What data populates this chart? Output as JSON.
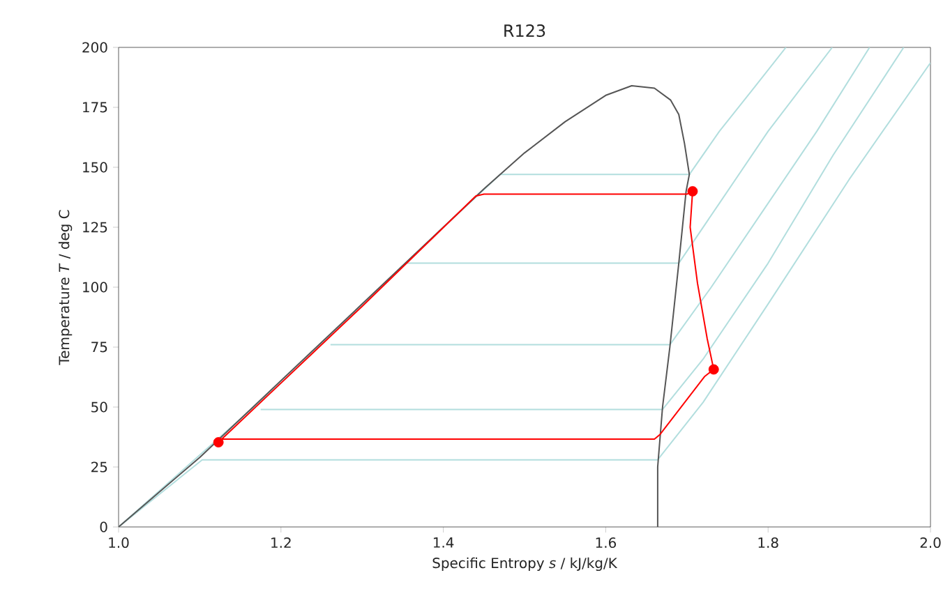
{
  "chart_data": {
    "type": "line",
    "title": "R123",
    "xlabel": "Specific Entropy *s* / kJ/kg/K",
    "ylabel": "Temperature *T* / deg C",
    "xlim": [
      1,
      2
    ],
    "ylim": [
      0,
      200
    ],
    "xticks": [
      {
        "value": 1,
        "label": "1.0"
      },
      1.2,
      1.4,
      1.6,
      1.8,
      {
        "value": 2,
        "label": "2.0"
      }
    ],
    "yticks": [
      0,
      25,
      50,
      75,
      100,
      125,
      150,
      175,
      200
    ],
    "series": [
      {
        "color": "#b2dede",
        "x": [
          1.0,
          1.2,
          1.4,
          1.47,
          1.703,
          1.74,
          1.78,
          1.822
        ],
        "values": [
          0,
          60,
          125,
          147,
          147,
          165,
          182,
          200
        ]
      },
      {
        "color": "#b2dede",
        "x": [
          1.355,
          1.69,
          1.74,
          1.8,
          1.879
        ],
        "values": [
          110,
          110,
          135,
          165,
          200
        ]
      },
      {
        "color": "#b2dede",
        "x": [
          1.261,
          1.679,
          1.73,
          1.8,
          1.86,
          1.925
        ],
        "values": [
          76,
          76,
          100,
          135,
          165,
          200
        ]
      },
      {
        "color": "#b2dede",
        "x": [
          1.175,
          1.67,
          1.72,
          1.8,
          1.88,
          1.967
        ],
        "values": [
          49,
          49,
          70,
          110,
          155,
          200
        ]
      },
      {
        "color": "#b2dede",
        "x": [
          1.0,
          1.103,
          1.664,
          1.72,
          1.8,
          1.9,
          2.0
        ],
        "values": [
          0,
          28,
          28,
          52,
          93,
          145,
          193.6
        ]
      },
      {
        "color": "#555555",
        "x": [
          1.0,
          1.1,
          1.4,
          1.45,
          1.5,
          1.55,
          1.6,
          1.632,
          1.66,
          1.68,
          1.69,
          1.697,
          1.703,
          1.699,
          1.69,
          1.679,
          1.67,
          1.664,
          1.664
        ],
        "values": [
          0,
          29,
          125,
          141,
          156,
          169,
          180,
          184,
          183,
          178,
          172,
          160,
          147,
          140,
          110,
          75,
          50,
          25,
          0
        ]
      },
      {
        "color": "#ff0000",
        "x": [
          1.123,
          1.2,
          1.3,
          1.44,
          1.45,
          1.7,
          1.707,
          1.704,
          1.713,
          1.725,
          1.733,
          1.722,
          1.667,
          1.66,
          1.123
        ],
        "values": [
          35.3,
          60,
          92,
          138,
          138.8,
          138.8,
          140,
          125,
          101.7,
          78.5,
          65.7,
          62.8,
          38.6,
          36.6,
          36.6
        ]
      },
      {
        "type": "scatter",
        "marker": "circle",
        "color": "#ff0000",
        "x": [
          1.123,
          1.707,
          1.733
        ],
        "values": [
          35.3,
          140,
          65.7
        ]
      }
    ]
  }
}
